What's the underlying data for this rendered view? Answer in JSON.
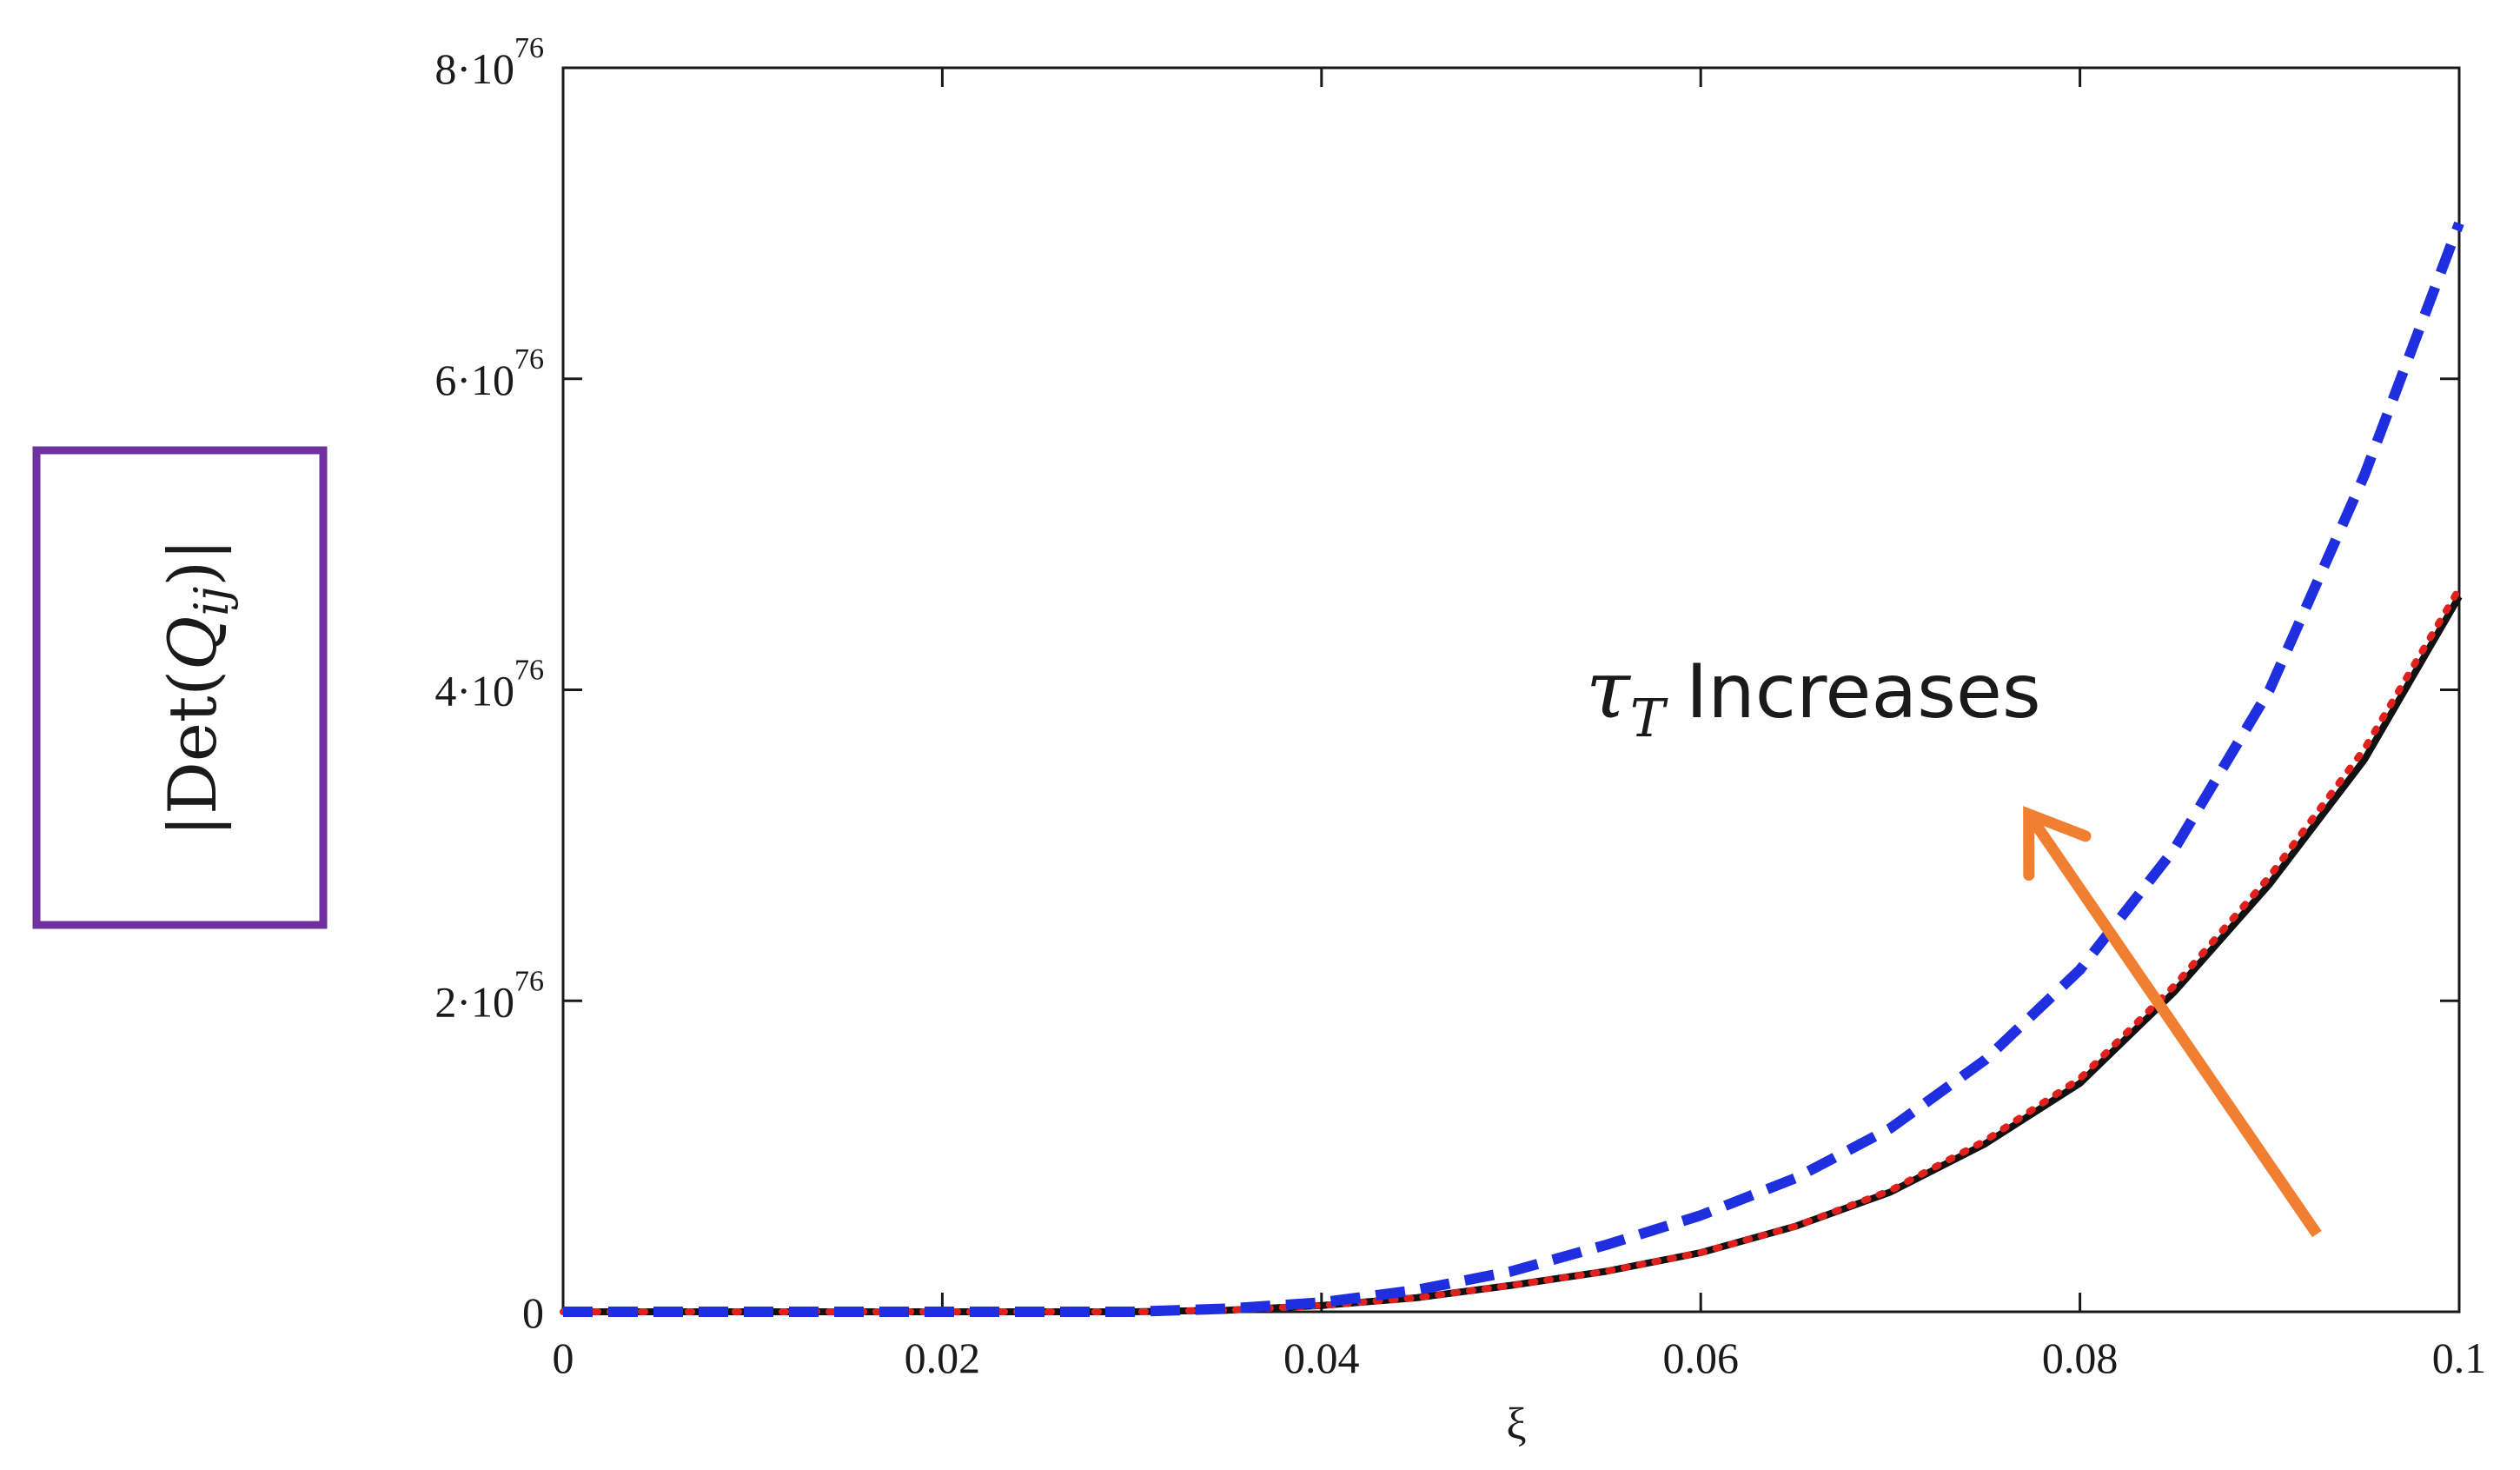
{
  "chart_data": {
    "type": "line",
    "title": "",
    "xlabel": "ξ",
    "ylabel": "|Det(Q_ij)|",
    "ylabel_parts": {
      "left": "|Det(",
      "q": "Q",
      "sub": "ij",
      "right": ")|"
    },
    "xlim": [
      0,
      0.1
    ],
    "ylim": [
      0,
      8e+76
    ],
    "x_ticks": [
      {
        "value": 0,
        "label": "0"
      },
      {
        "value": 0.02,
        "label": "0.02"
      },
      {
        "value": 0.04,
        "label": "0.04"
      },
      {
        "value": 0.06,
        "label": "0.06"
      },
      {
        "value": 0.08,
        "label": "0.08"
      },
      {
        "value": 0.1,
        "label": "0.1"
      }
    ],
    "y_ticks": [
      {
        "value": 0,
        "mantissa": "0",
        "base": "",
        "exponent": ""
      },
      {
        "value": 2e+76,
        "mantissa": "2",
        "base": "·10",
        "exponent": "76"
      },
      {
        "value": 4e+76,
        "mantissa": "4",
        "base": "·10",
        "exponent": "76"
      },
      {
        "value": 6e+76,
        "mantissa": "6",
        "base": "·10",
        "exponent": "76"
      },
      {
        "value": 8e+76,
        "mantissa": "8",
        "base": "·10",
        "exponent": "76"
      }
    ],
    "grid": false,
    "series": [
      {
        "style": "dashed",
        "color": "#1f2fe0",
        "x": [
          0,
          0.03,
          0.035,
          0.04,
          0.045,
          0.05,
          0.055,
          0.06,
          0.065,
          0.07,
          0.075,
          0.08,
          0.085,
          0.09,
          0.095,
          0.1
        ],
        "y": [
          0,
          0,
          2e+74,
          6e+74,
          1.4e+75,
          2.6e+75,
          4.3e+75,
          6.2e+75,
          8.6e+75,
          1.18e+76,
          1.62e+76,
          2.2e+76,
          2.98e+76,
          4e+76,
          5.38e+76,
          7e+76
        ]
      },
      {
        "style": "solid",
        "color": "#111111",
        "x": [
          0,
          0.03,
          0.035,
          0.04,
          0.045,
          0.05,
          0.055,
          0.06,
          0.065,
          0.07,
          0.075,
          0.08,
          0.085,
          0.09,
          0.095,
          0.1
        ],
        "y": [
          0,
          0,
          1e+74,
          4e+74,
          9e+74,
          1.7e+75,
          2.6e+75,
          3.8e+75,
          5.5e+75,
          7.7e+75,
          1.08e+76,
          1.47e+76,
          2.06e+76,
          2.75e+76,
          3.55e+76,
          4.6e+76
        ]
      },
      {
        "style": "dotted",
        "color": "#e0201c",
        "x": [
          0,
          0.03,
          0.035,
          0.04,
          0.045,
          0.05,
          0.055,
          0.06,
          0.065,
          0.07,
          0.075,
          0.08,
          0.085,
          0.09,
          0.095,
          0.1
        ],
        "y": [
          0,
          0,
          1e+74,
          4e+74,
          9e+74,
          1.7e+75,
          2.6e+75,
          3.8e+75,
          5.5e+75,
          7.8e+75,
          1.1e+76,
          1.5e+76,
          2.1e+76,
          2.8e+76,
          3.62e+76,
          4.65e+76
        ]
      }
    ],
    "annotation": {
      "tau": "τ",
      "sub": "T",
      "text": "Increases",
      "arrow_color": "#f07f32",
      "arrow_from": {
        "x": 0.0925,
        "y": 5e+75
      },
      "arrow_to": {
        "x": 0.0773,
        "y": 3.2e+76
      }
    },
    "ylabel_box_color": "#7030a0"
  }
}
